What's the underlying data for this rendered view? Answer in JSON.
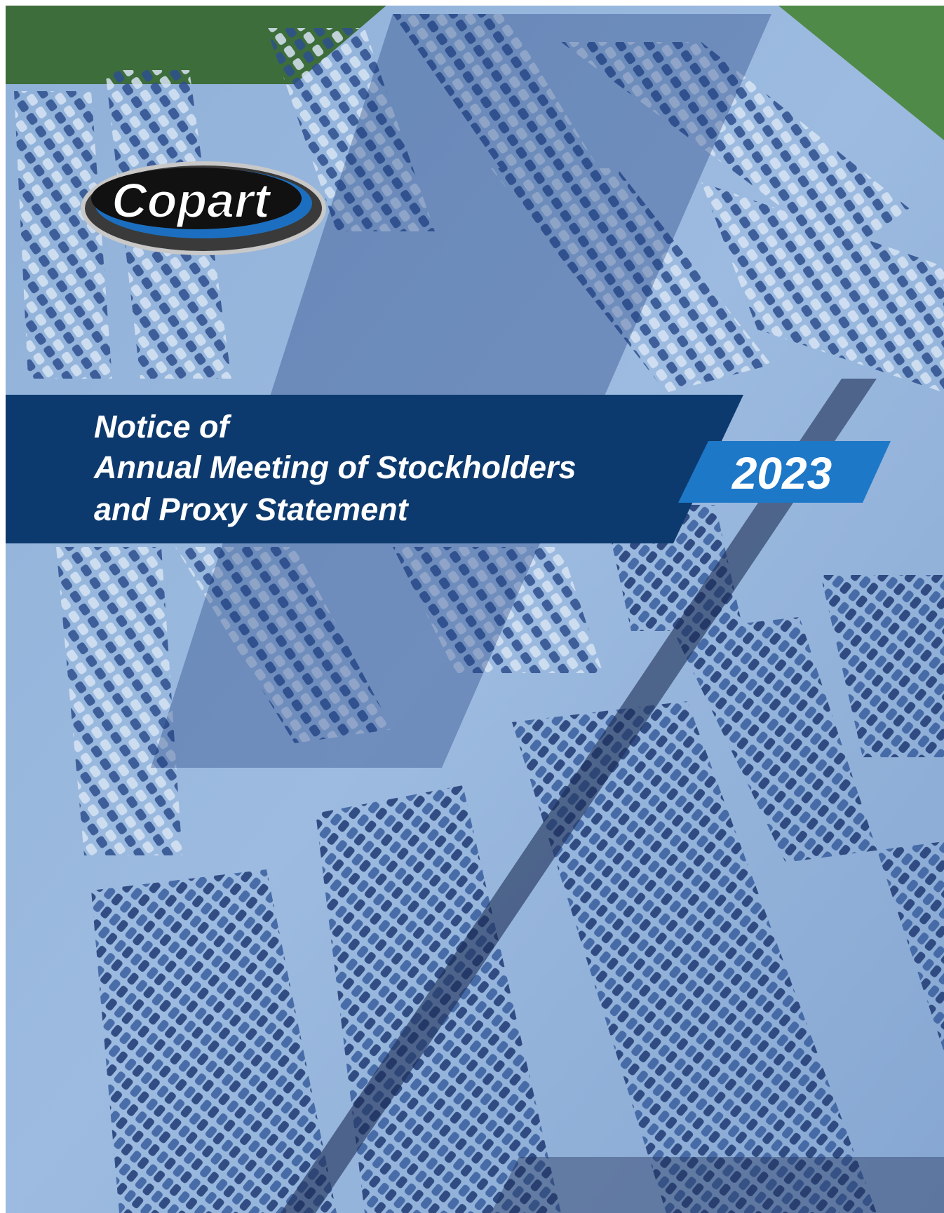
{
  "logo": {
    "text": "Copart"
  },
  "title": {
    "lines": [
      "Notice of",
      "Annual Meeting of Stockholders",
      "and Proxy Statement"
    ]
  },
  "year": "2023"
}
